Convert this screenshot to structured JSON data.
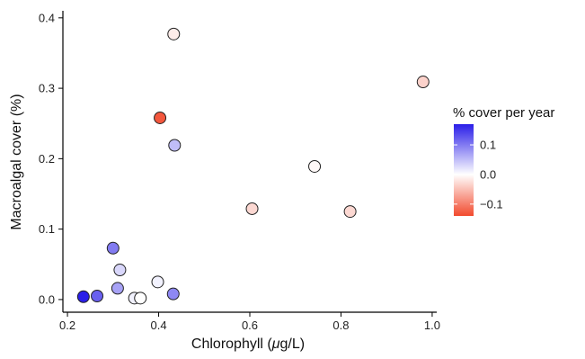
{
  "chart_data": {
    "type": "scatter",
    "title": "",
    "xlabel_prefix": "Chlorophyll (",
    "xlabel_unit_greek": "μ",
    "xlabel_suffix": "g/L)",
    "ylabel": "Macroalgal cover (%)",
    "xlim": [
      0.19,
      1.01
    ],
    "ylim": [
      -0.018,
      0.41
    ],
    "xticks": [
      0.2,
      0.4,
      0.6,
      0.8,
      1.0
    ],
    "xtick_labels": [
      "0.2",
      "0.4",
      "0.6",
      "0.8",
      "1.0"
    ],
    "yticks": [
      0.0,
      0.1,
      0.2,
      0.3,
      0.4
    ],
    "ytick_labels": [
      "0.0",
      "0.1",
      "0.2",
      "0.3",
      "0.4"
    ],
    "grid": false,
    "legend": {
      "title": "% cover per year",
      "placement": "right",
      "range": [
        -0.14,
        0.17
      ],
      "ticks": [
        0.1,
        0.0,
        -0.1
      ],
      "tick_labels": [
        "0.1",
        "0.0",
        "−0.1"
      ],
      "colors": {
        "high": "#2a1ee8",
        "mid": "#ffffff",
        "low": "#f24a2e"
      }
    },
    "points": [
      {
        "x": 0.235,
        "y": 0.004,
        "c": 0.17
      },
      {
        "x": 0.265,
        "y": 0.005,
        "c": 0.12
      },
      {
        "x": 0.3,
        "y": 0.073,
        "c": 0.1
      },
      {
        "x": 0.31,
        "y": 0.016,
        "c": 0.07
      },
      {
        "x": 0.315,
        "y": 0.042,
        "c": 0.03
      },
      {
        "x": 0.347,
        "y": 0.002,
        "c": 0.01
      },
      {
        "x": 0.36,
        "y": 0.002,
        "c": 0.0
      },
      {
        "x": 0.398,
        "y": 0.025,
        "c": 0.01
      },
      {
        "x": 0.403,
        "y": 0.258,
        "c": -0.13
      },
      {
        "x": 0.432,
        "y": 0.008,
        "c": 0.09
      },
      {
        "x": 0.435,
        "y": 0.219,
        "c": 0.05
      },
      {
        "x": 0.433,
        "y": 0.377,
        "c": -0.015
      },
      {
        "x": 0.605,
        "y": 0.129,
        "c": -0.03
      },
      {
        "x": 0.742,
        "y": 0.189,
        "c": -0.005
      },
      {
        "x": 0.82,
        "y": 0.125,
        "c": -0.03
      },
      {
        "x": 0.98,
        "y": 0.309,
        "c": -0.035
      }
    ]
  }
}
